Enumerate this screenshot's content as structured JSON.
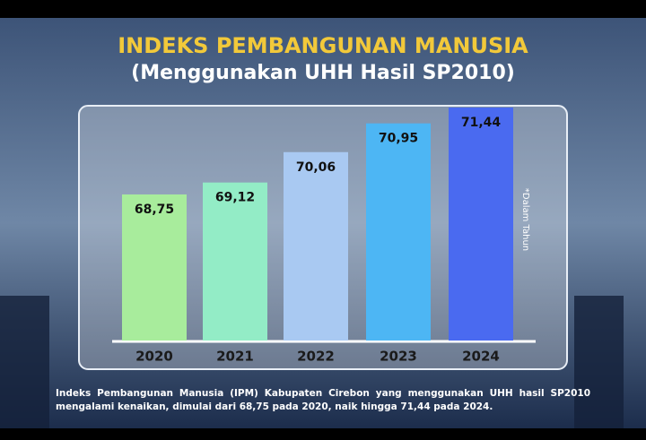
{
  "chart_data": {
    "type": "bar",
    "title": "INDEKS PEMBANGUNAN MANUSIA",
    "subtitle": "(Menggunakan UHH Hasil SP2010)",
    "categories": [
      "2020",
      "2021",
      "2022",
      "2023",
      "2024"
    ],
    "values": [
      68.75,
      69.12,
      70.06,
      70.95,
      71.44
    ],
    "value_labels": [
      "68,75",
      "69,12",
      "70,06",
      "70,95",
      "71,44"
    ],
    "colors": [
      "#a8ec9c",
      "#93ecc6",
      "#a9c9f2",
      "#4db6f4",
      "#4a6af0"
    ],
    "note": "*Dalam Tahun",
    "caption": "Indeks Pembangunan Manusia (IPM) Kabupaten Cirebon yang menggunakan UHH hasil SP2010 mengalami kenaikan, dimulai dari 68,75 pada 2020, naik hingga 71,44 pada 2024."
  }
}
